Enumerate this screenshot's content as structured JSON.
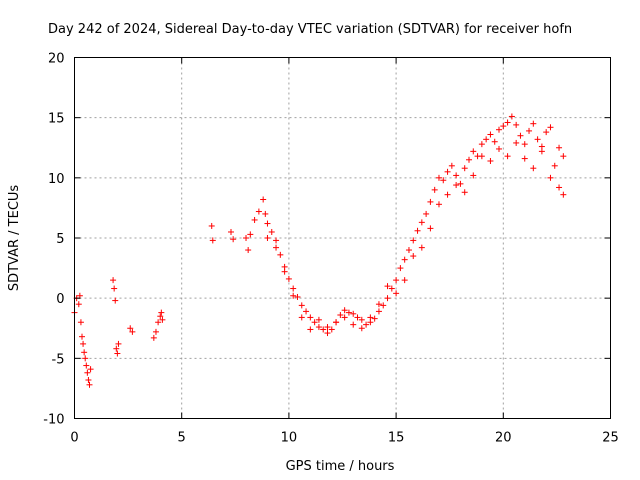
{
  "chart_data": {
    "type": "scatter",
    "title": "Day 242 of 2024, Sidereal Day-to-day VTEC variation (SDTVAR) for receiver hofn",
    "xlabel": "GPS time / hours",
    "ylabel": "SDTVAR / TECUs",
    "xlim": [
      0,
      25
    ],
    "ylim": [
      -10,
      20
    ],
    "xticks": [
      0,
      5,
      10,
      15,
      20,
      25
    ],
    "yticks": [
      -10,
      -5,
      0,
      5,
      10,
      15,
      20
    ],
    "grid": true,
    "marker": "+",
    "color": "#ff0000",
    "series": [
      {
        "name": "SDTVAR",
        "x": [
          0.0,
          0.1,
          0.2,
          0.25,
          0.3,
          0.35,
          0.4,
          0.45,
          0.5,
          0.55,
          0.6,
          0.65,
          0.7,
          0.75,
          1.8,
          1.85,
          1.9,
          1.95,
          2.0,
          2.05,
          2.6,
          2.7,
          3.7,
          3.8,
          3.9,
          4.0,
          4.05,
          4.1,
          6.4,
          6.45,
          7.3,
          7.4,
          8.0,
          8.1,
          8.2,
          8.4,
          8.6,
          8.8,
          8.9,
          9.0,
          9.2,
          9.4,
          9.6,
          9.8,
          10.0,
          10.2,
          10.4,
          10.6,
          10.8,
          11.0,
          11.2,
          11.4,
          11.6,
          11.8,
          12.0,
          12.2,
          12.4,
          12.6,
          12.8,
          13.0,
          13.2,
          13.4,
          13.6,
          13.8,
          14.0,
          14.2,
          14.4,
          14.6,
          14.8,
          15.0,
          15.2,
          15.4,
          15.6,
          15.8,
          16.0,
          16.2,
          16.4,
          16.6,
          16.8,
          17.0,
          17.2,
          17.4,
          17.6,
          17.8,
          18.0,
          18.2,
          18.4,
          18.6,
          18.8,
          19.0,
          19.2,
          19.4,
          19.6,
          19.8,
          20.0,
          20.2,
          20.4,
          20.6,
          20.8,
          21.0,
          21.2,
          21.4,
          21.6,
          21.8,
          22.0,
          22.2,
          22.4,
          22.6,
          22.8,
          9.0,
          9.4,
          9.8,
          10.2,
          10.6,
          11.0,
          11.4,
          11.8,
          12.2,
          12.6,
          13.0,
          13.4,
          13.8,
          14.2,
          14.6,
          15.0,
          15.4,
          15.8,
          16.2,
          16.6,
          17.0,
          17.4,
          17.8,
          18.2,
          18.6,
          19.0,
          19.4,
          19.8,
          20.2,
          20.6,
          21.0,
          21.4,
          21.8,
          22.2,
          22.6,
          22.8
        ],
        "y": [
          -1.2,
          0.0,
          -0.5,
          0.2,
          -2.0,
          -3.2,
          -3.8,
          -4.5,
          -5.0,
          -5.6,
          -6.2,
          -6.8,
          -7.2,
          -5.9,
          1.5,
          0.8,
          -0.2,
          -4.2,
          -4.6,
          -3.8,
          -2.5,
          -2.8,
          -3.3,
          -2.8,
          -2.0,
          -1.5,
          -1.2,
          -1.8,
          6.0,
          4.8,
          5.5,
          4.9,
          5.0,
          4.0,
          5.3,
          6.5,
          7.2,
          8.2,
          7.0,
          6.2,
          5.5,
          4.8,
          3.6,
          2.6,
          1.6,
          0.8,
          0.1,
          -0.6,
          -1.1,
          -1.6,
          -2.0,
          -2.4,
          -2.6,
          -2.9,
          -2.6,
          -2.0,
          -1.4,
          -1.0,
          -1.2,
          -1.3,
          -1.6,
          -1.8,
          -2.2,
          -2.0,
          -1.7,
          -1.1,
          -0.6,
          0.0,
          0.8,
          1.5,
          2.5,
          3.2,
          4.0,
          4.8,
          5.6,
          6.3,
          7.0,
          8.0,
          9.0,
          10.0,
          9.8,
          10.5,
          11.0,
          10.2,
          9.5,
          10.8,
          11.5,
          12.2,
          11.8,
          12.8,
          13.2,
          13.6,
          13.0,
          14.0,
          14.3,
          14.6,
          15.1,
          14.4,
          13.5,
          12.8,
          13.9,
          14.5,
          13.2,
          12.6,
          13.8,
          14.2,
          11.0,
          12.5,
          11.8,
          5.0,
          4.2,
          2.2,
          0.2,
          -1.6,
          -2.6,
          -1.8,
          -2.4,
          -2.0,
          -1.6,
          -2.2,
          -2.5,
          -1.6,
          -0.5,
          1.0,
          0.4,
          1.5,
          3.5,
          4.2,
          5.8,
          7.8,
          8.6,
          9.4,
          8.8,
          10.2,
          11.8,
          11.4,
          12.4,
          11.8,
          12.9,
          11.6,
          10.8,
          12.2,
          10.0,
          9.2,
          8.6
        ]
      }
    ]
  }
}
